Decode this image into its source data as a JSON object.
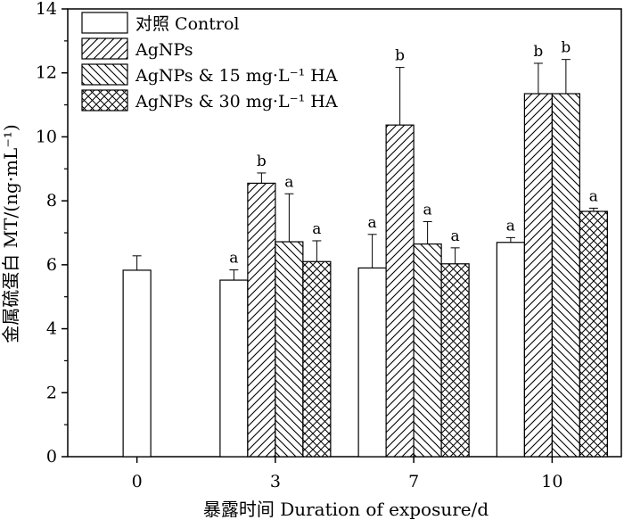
{
  "chart_data": {
    "type": "bar",
    "categories": [
      "0",
      "3",
      "7",
      "10"
    ],
    "xlabel": "暴露时间 Duration of exposure/d",
    "ylabel": "金属硫蛋白 MT/(ng·mL⁻¹)",
    "ylim": [
      0,
      14
    ],
    "yticks": [
      "0",
      "2",
      "4",
      "6",
      "8",
      "10",
      "12",
      "14"
    ],
    "grid": false,
    "legend_position": "top-left",
    "series": [
      {
        "name": "对照 Control",
        "pattern": "none",
        "values": [
          5.83,
          5.52,
          5.9,
          6.7
        ],
        "errors": [
          0.45,
          0.32,
          1.05,
          0.15
        ],
        "labels": [
          "",
          "a",
          "a",
          "a"
        ]
      },
      {
        "name": "AgNPs",
        "pattern": "forward-diagonal",
        "values": [
          null,
          8.55,
          10.37,
          11.35
        ],
        "errors": [
          null,
          0.32,
          1.8,
          0.95
        ],
        "labels": [
          "",
          "b",
          "b",
          "b"
        ]
      },
      {
        "name": "AgNPs & 15 mg·L⁻¹ HA",
        "pattern": "backward-diagonal",
        "values": [
          null,
          6.72,
          6.65,
          11.35
        ],
        "errors": [
          null,
          1.5,
          0.7,
          1.07
        ],
        "labels": [
          "",
          "a",
          "a",
          "b"
        ]
      },
      {
        "name": "AgNPs & 30 mg·L⁻¹ HA",
        "pattern": "crosshatch",
        "values": [
          null,
          6.1,
          6.03,
          7.67
        ],
        "errors": [
          null,
          0.65,
          0.5,
          0.1
        ],
        "labels": [
          "",
          "a",
          "a",
          "a"
        ]
      }
    ]
  }
}
